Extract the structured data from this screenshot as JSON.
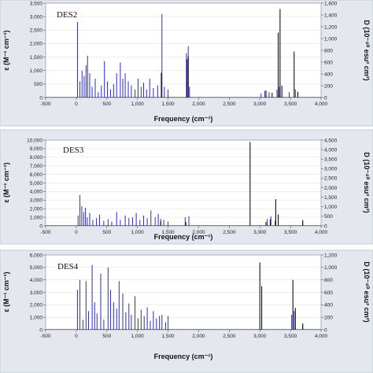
{
  "colors": {
    "epsilon": "#2a2ad0",
    "dichroic": "#111111"
  },
  "chart_data": [
    {
      "type": "bar",
      "title": "DES2",
      "xlabel": "Frequency (cm⁻¹)",
      "ylabel": "ε (M⁻¹ cm⁻¹)",
      "y2label": "D (10⁻⁴⁰ esu² cm²)",
      "xlim": [
        -500,
        4000
      ],
      "ylim": [
        0,
        3500
      ],
      "y2lim": [
        0,
        1600
      ],
      "xticks": [
        "-500",
        "0",
        "500",
        "1,000",
        "1,500",
        "2,000",
        "2,500",
        "3,000",
        "3,500",
        "4,000"
      ],
      "yticks": [
        "0",
        "500",
        "1,000",
        "1,500",
        "2,000",
        "2,500",
        "3,000",
        "3,500"
      ],
      "y2ticks": [
        "0",
        "200",
        "400",
        "600",
        "800",
        "1,000",
        "1,200",
        "1,400",
        "1,600"
      ],
      "grid": true,
      "series": [
        {
          "x": [
            20,
            60,
            95,
            130,
            160,
            185,
            220,
            260,
            310,
            360,
            410,
            460,
            510,
            560,
            610,
            660,
            720,
            760,
            800,
            850,
            900,
            960,
            1010,
            1060,
            1100,
            1150,
            1200,
            1260,
            1330,
            1400,
            1440,
            1500,
            1800,
            1830,
            1850,
            3020,
            3080,
            3150,
            3280,
            3320,
            3480,
            3580,
            3620
          ],
          "y": [
            2800,
            600,
            1000,
            800,
            1200,
            1550,
            900,
            400,
            700,
            200,
            450,
            1350,
            600,
            300,
            500,
            900,
            1300,
            700,
            900,
            600,
            450,
            300,
            700,
            400,
            550,
            300,
            700,
            350,
            450,
            3100,
            400,
            300,
            1650,
            1900,
            400,
            150,
            250,
            200,
            300,
            400,
            200,
            300,
            200
          ]
        },
        {
          "x": [
            1390,
            1810,
            1830,
            3100,
            3200,
            3300,
            3330,
            3360,
            3560,
            3620
          ],
          "y2": [
            420,
            650,
            700,
            120,
            80,
            1100,
            1500,
            200,
            780,
            100
          ]
        }
      ]
    },
    {
      "type": "bar",
      "title": "DES3",
      "xlabel": "Frequency (cm⁻¹)",
      "ylabel": "ε (M⁻¹ cm⁻¹)",
      "y2label": "D (10⁻⁴⁰ esu² cm²)",
      "xlim": [
        -500,
        4000
      ],
      "ylim": [
        0,
        10000
      ],
      "y2lim": [
        0,
        4500
      ],
      "xticks": [
        "-500",
        "0",
        "500",
        "1,000",
        "1,500",
        "2,000",
        "2,500",
        "3,000",
        "3,500",
        "4,000"
      ],
      "yticks": [
        "0",
        "1,000",
        "2,000",
        "3,000",
        "4,000",
        "5,000",
        "6,000",
        "7,000",
        "8,000",
        "9,000",
        "10,000"
      ],
      "y2ticks": [
        "0",
        "500",
        "1,000",
        "1,500",
        "2,000",
        "2,500",
        "3,000",
        "3,500",
        "4,000",
        "4,500"
      ],
      "grid": true,
      "series": [
        {
          "x": [
            30,
            60,
            90,
            120,
            150,
            180,
            220,
            270,
            330,
            380,
            450,
            520,
            580,
            660,
            720,
            800,
            860,
            920,
            980,
            1040,
            1100,
            1160,
            1220,
            1290,
            1340,
            1380,
            1430,
            1500,
            1780,
            1840,
            3120,
            3180,
            3250,
            3700
          ],
          "y": [
            1200,
            3600,
            2300,
            1600,
            2100,
            1000,
            1500,
            700,
            900,
            1300,
            600,
            800,
            500,
            1600,
            700,
            1200,
            900,
            1000,
            1500,
            700,
            1200,
            900,
            1800,
            1000,
            1400,
            800,
            700,
            500,
            1000,
            1100,
            800,
            1100,
            600,
            700
          ]
        },
        {
          "x": [
            1380,
            1790,
            2840,
            3100,
            3170,
            3260,
            3300,
            3700
          ],
          "y2": [
            250,
            200,
            4400,
            200,
            350,
            1400,
            600,
            250
          ]
        }
      ]
    },
    {
      "type": "bar",
      "title": "DES4",
      "xlabel": "Frequency (cm⁻¹)",
      "ylabel": "ε (M⁻¹ cm⁻¹)",
      "y2label": "D (10⁻⁴⁰ esu² cm²)",
      "xlim": [
        -500,
        4000
      ],
      "ylim": [
        0,
        6000
      ],
      "y2lim": [
        0,
        1200
      ],
      "xticks": [
        "-500",
        "0",
        "500",
        "1,000",
        "1,500",
        "2,000",
        "2,500",
        "3,000",
        "3,500",
        "4,000"
      ],
      "yticks": [
        "0",
        "1,000",
        "2,000",
        "3,000",
        "4,000",
        "5,000",
        "6,000"
      ],
      "y2ticks": [
        "0",
        "200",
        "400",
        "600",
        "800",
        "1,000",
        "1,200"
      ],
      "grid": true,
      "series": [
        {
          "x": [
            20,
            60,
            110,
            160,
            200,
            260,
            300,
            340,
            400,
            450,
            520,
            560,
            610,
            660,
            700,
            760,
            810,
            860,
            900,
            960,
            1010,
            1060,
            1110,
            1160,
            1210,
            1260,
            1310,
            1360,
            1400,
            1460,
            1500,
            3520,
            3560,
            3700
          ],
          "y": [
            3200,
            4000,
            800,
            3900,
            1500,
            5200,
            2200,
            1300,
            4500,
            800,
            5000,
            3200,
            2200,
            1700,
            3900,
            2900,
            1400,
            2100,
            1200,
            2700,
            900,
            1600,
            1100,
            1800,
            700,
            1500,
            900,
            1100,
            1200,
            600,
            1100,
            1200,
            1500,
            400
          ]
        },
        {
          "x": [
            3000,
            3030,
            3540,
            3580,
            3700
          ],
          "y2": [
            1080,
            700,
            800,
            350,
            100
          ]
        }
      ]
    }
  ]
}
